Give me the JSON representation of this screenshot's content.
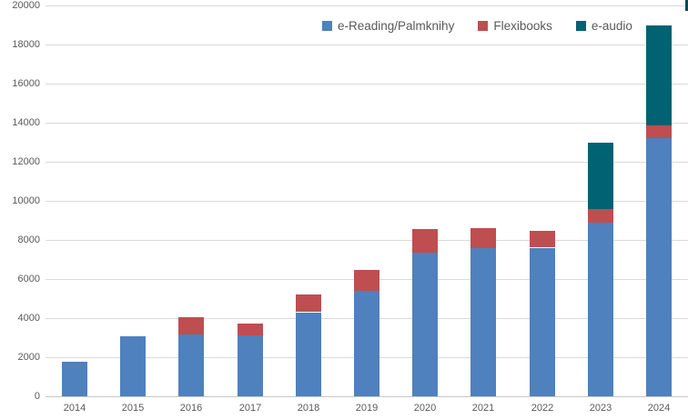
{
  "chart_data": {
    "type": "bar",
    "stacked": true,
    "title": "",
    "xlabel": "",
    "ylabel": "",
    "categories": [
      "2014",
      "2015",
      "2016",
      "2017",
      "2018",
      "2019",
      "2020",
      "2021",
      "2022",
      "2023",
      "2024"
    ],
    "series": [
      {
        "name": "e-Reading/Palmknihy",
        "color": "#4e81bd",
        "values": [
          1750,
          3050,
          3150,
          3100,
          4300,
          5400,
          7350,
          7600,
          7600,
          8900,
          13200
        ]
      },
      {
        "name": "Flexibooks",
        "color": "#be4e50",
        "values": [
          0,
          0,
          900,
          600,
          900,
          1050,
          1200,
          1000,
          850,
          700,
          700
        ]
      },
      {
        "name": "e-audio",
        "color": "#006272",
        "values": [
          0,
          0,
          0,
          0,
          0,
          0,
          0,
          0,
          0,
          3400,
          5100
        ]
      }
    ],
    "ylim": [
      0,
      20000
    ],
    "ytick_step": 2000,
    "ytick_labels": [
      "0",
      "2000",
      "4000",
      "6000",
      "8000",
      "10000",
      "12000",
      "14000",
      "16000",
      "18000",
      "20000"
    ],
    "grid": true,
    "legend_position": "top"
  },
  "colors": {
    "gridline": "#d9d9d9",
    "axis_text": "#595959",
    "legend_text": "#595959",
    "background": "#ffffff"
  }
}
